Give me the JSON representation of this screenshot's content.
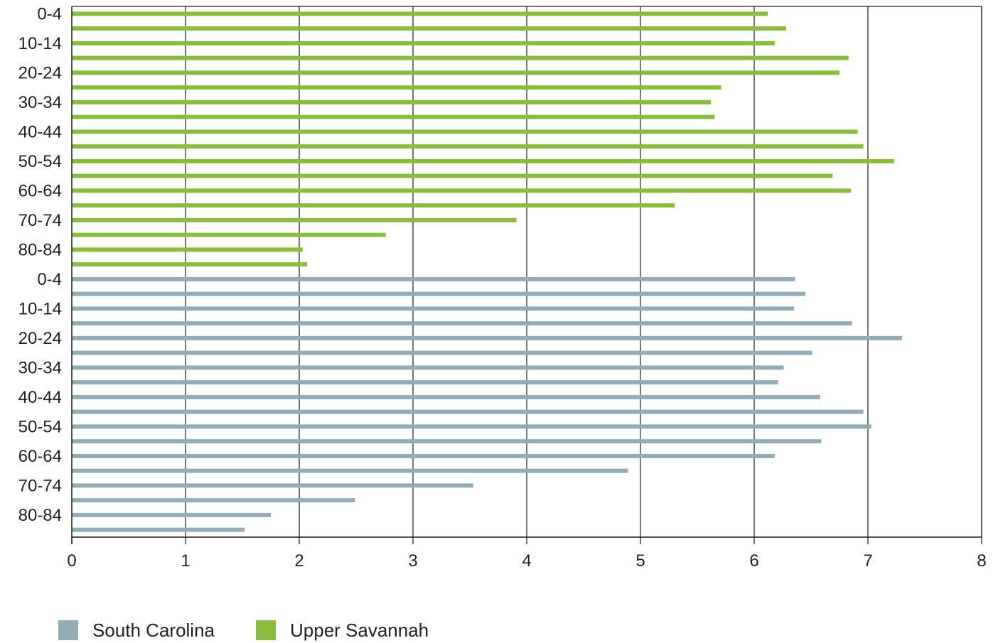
{
  "chart_data": {
    "type": "bar",
    "orientation": "horizontal",
    "grid": true,
    "legend_position": "bottom-left",
    "x_ticks": [
      "0",
      "1",
      "2",
      "3",
      "4",
      "5",
      "6",
      "7",
      "8"
    ],
    "xlim": [
      0,
      8
    ],
    "y_tick_labels": [
      "0-4",
      "10-14",
      "20-24",
      "30-34",
      "40-44",
      "50-54",
      "60-64",
      "70-74",
      "80-84",
      "0-4",
      "10-14",
      "20-24",
      "30-34",
      "40-44",
      "50-54",
      "60-64",
      "70-74",
      "80-84"
    ],
    "series": [
      {
        "name": "Upper Savannah",
        "color": "#8bbd3d",
        "values": [
          6.12,
          6.28,
          6.18,
          6.83,
          6.75,
          5.71,
          5.62,
          5.65,
          6.91,
          6.96,
          7.23,
          6.69,
          6.85,
          5.3,
          3.91,
          2.76,
          2.03,
          2.07
        ]
      },
      {
        "name": "South Carolina",
        "color": "#93adb7",
        "values": [
          6.36,
          6.45,
          6.35,
          6.86,
          7.3,
          6.51,
          6.26,
          6.21,
          6.58,
          6.96,
          7.03,
          6.59,
          6.18,
          4.89,
          3.53,
          2.49,
          1.75,
          1.52
        ]
      }
    ]
  }
}
